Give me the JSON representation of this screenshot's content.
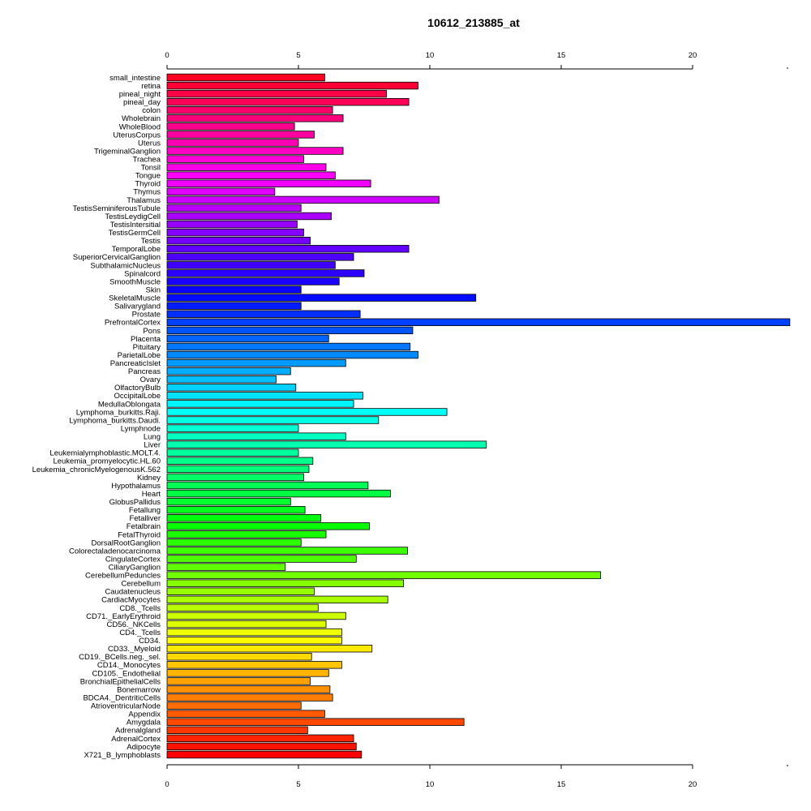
{
  "chart_data": {
    "type": "bar",
    "orientation": "horizontal",
    "title": "10612_213885_at",
    "xlabel": "",
    "ylabel": "",
    "xlim": [
      0,
      23.7
    ],
    "xticks": [
      "0",
      "5",
      "10",
      "15",
      "20"
    ],
    "categories": [
      "small_intestine",
      "retina",
      "pineal_night",
      "pineal_day",
      "colon",
      "Wholebrain",
      "WholeBlood",
      "UterusCorpus",
      "Uterus",
      "TrigeminalGanglion",
      "Trachea",
      "Tonsil",
      "Tongue",
      "Thyroid",
      "Thymus",
      "Thalamus",
      "TestisSeminiferousTubule",
      "TestisLeydigCell",
      "TestisIntersitial",
      "TestisGermCell",
      "Testis",
      "TemporalLobe",
      "SuperiorCervicalGanglion",
      "SubthalamicNucleus",
      "Spinalcord",
      "SmoothMuscle",
      "Skin",
      "SkeletalMuscle",
      "Salivarygland",
      "Prostate",
      "PrefrontalCortex",
      "Pons",
      "Placenta",
      "Pituitary",
      "ParietalLobe",
      "PancreaticIslet",
      "Pancreas",
      "Ovary",
      "OlfactoryBulb",
      "OccipitalLobe",
      "MedullaOblongata",
      "Lymphoma_burkitts.Raji.",
      "Lymphoma_burkitts.Daudi.",
      "Lymphnode",
      "Lung",
      "Liver",
      "Leukemialymphoblastic.MOLT.4.",
      "Leukemia_promyelocytic.HL.60",
      "Leukemia_chronicMyelogenousK.562",
      "Kidney",
      "Hypothalamus",
      "Heart",
      "GlobusPallidus",
      "Fetallung",
      "Fetalliver",
      "Fetalbrain",
      "FetalThyroid",
      "DorsalRootGanglion",
      "Colorectaladenocarcinoma",
      "CingulateCortex",
      "CiliaryGanglion",
      "CerebellumPeduncles",
      "Cerebellum",
      "Caudatenucleus",
      "CardiacMyocytes",
      "CD8._Tcells",
      "CD71._EarlyErythroid",
      "CD56._NKCells",
      "CD4._Tcells",
      "CD34.",
      "CD33._Myeloid",
      "CD19._BCells.neg._sel.",
      "CD14._Monocytes",
      "CD105._Endothelial",
      "BronchialEpithelialCells",
      "Bonemarrow",
      "BDCA4._DentriticCells",
      "AtrioventricularNode",
      "Appendix",
      "Amygdala",
      "Adrenalgland",
      "AdrenalCortex",
      "Adipocyte",
      "X721_B_lymphoblasts"
    ],
    "values": [
      6.0,
      9.55,
      8.35,
      9.2,
      6.3,
      6.7,
      4.85,
      5.6,
      5.0,
      6.7,
      5.2,
      6.05,
      6.4,
      7.75,
      4.1,
      10.35,
      5.1,
      6.25,
      4.95,
      5.2,
      5.45,
      9.2,
      7.1,
      6.4,
      7.5,
      6.55,
      5.1,
      11.75,
      5.1,
      7.35,
      23.7,
      9.35,
      6.15,
      9.25,
      9.55,
      6.8,
      4.7,
      4.15,
      4.9,
      7.45,
      7.1,
      10.65,
      8.05,
      5.0,
      6.8,
      12.15,
      5.0,
      5.55,
      5.4,
      5.2,
      7.65,
      8.5,
      4.7,
      5.25,
      5.85,
      7.7,
      6.05,
      5.1,
      9.15,
      7.2,
      4.5,
      16.5,
      9.0,
      5.6,
      8.4,
      5.75,
      6.8,
      6.05,
      6.65,
      6.65,
      7.8,
      5.5,
      6.65,
      6.15,
      5.45,
      6.2,
      6.3,
      5.1,
      6.0,
      11.3,
      5.35,
      7.1,
      7.2,
      7.4
    ],
    "bar_colors": "rainbow gradient from red (top) through magenta, purple, blue, cyan, green, yellow, orange back to red (bottom)",
    "grid": false,
    "legend": "none"
  }
}
